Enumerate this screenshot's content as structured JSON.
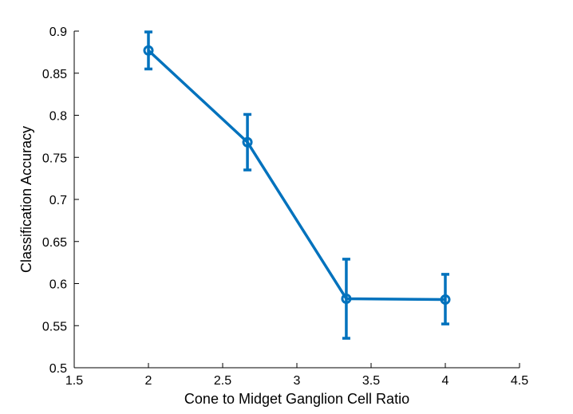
{
  "chart_data": {
    "type": "line",
    "title": "",
    "xlabel": "Cone to Midget Ganglion Cell Ratio",
    "ylabel": "Classification Accuracy",
    "xlim": [
      1.5,
      4.5
    ],
    "ylim": [
      0.5,
      0.9
    ],
    "xticks": [
      1.5,
      2,
      2.5,
      3,
      3.5,
      4,
      4.5
    ],
    "xtick_labels": [
      "1.5",
      "2",
      "2.5",
      "3",
      "3.5",
      "4",
      "4.5"
    ],
    "yticks": [
      0.5,
      0.55,
      0.6,
      0.65,
      0.7,
      0.75,
      0.8,
      0.85,
      0.9
    ],
    "ytick_labels": [
      "0.5",
      "0.55",
      "0.6",
      "0.65",
      "0.7",
      "0.75",
      "0.8",
      "0.85",
      "0.9"
    ],
    "grid": false,
    "series": [
      {
        "color": "#0072bd",
        "marker": "circle",
        "x": [
          2,
          2.667,
          3.333,
          4
        ],
        "y": [
          0.877,
          0.768,
          0.582,
          0.581
        ],
        "err_low": [
          0.855,
          0.735,
          0.535,
          0.552
        ],
        "err_high": [
          0.899,
          0.801,
          0.629,
          0.611
        ]
      }
    ]
  }
}
